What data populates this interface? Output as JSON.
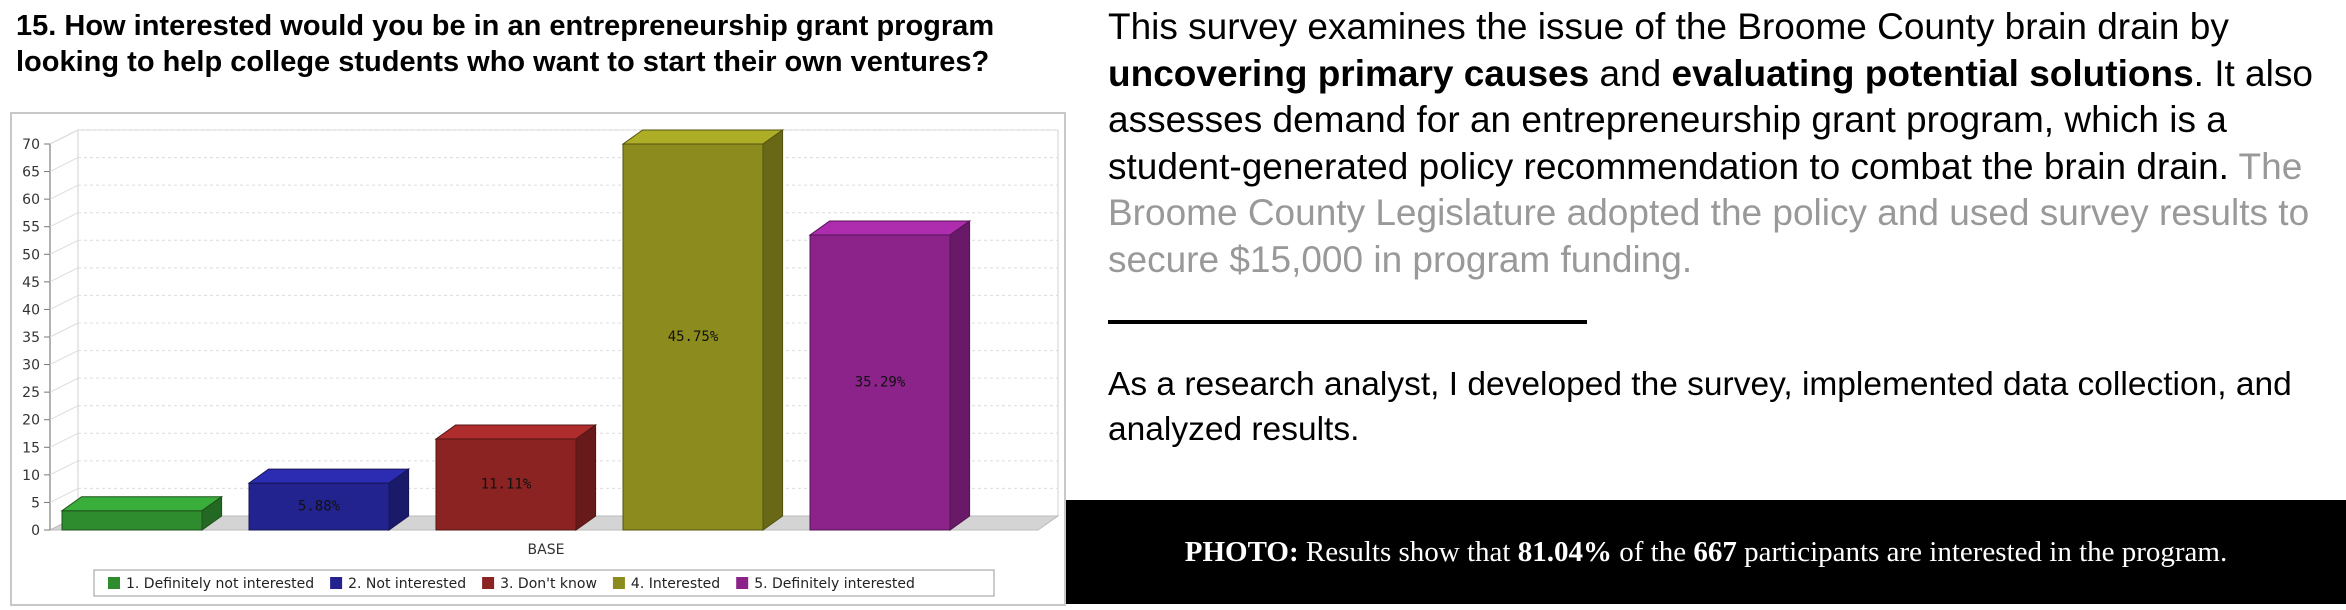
{
  "question": "15. How interested would you be in an entrepreneurship grant program looking to help college students who want to start their own ventures?",
  "chart_data": {
    "type": "bar",
    "xlabel": "BASE",
    "ylim": [
      0,
      70
    ],
    "yticks": [
      0,
      5,
      10,
      15,
      20,
      25,
      30,
      35,
      40,
      45,
      50,
      55,
      60,
      65,
      70
    ],
    "series": [
      {
        "name": "1. Definitely not interested",
        "value": 3.5,
        "label": "",
        "color": "#2e8b2e"
      },
      {
        "name": "2. Not interested",
        "value": 8.5,
        "label": "5.88%",
        "color": "#23238f"
      },
      {
        "name": "3. Don't know",
        "value": 16.5,
        "label": "11.11%",
        "color": "#8b2323"
      },
      {
        "name": "4. Interested",
        "value": 70,
        "label": "45.75%",
        "color": "#8b8b1e"
      },
      {
        "name": "5. Definitely interested",
        "value": 53.5,
        "label": "35.29%",
        "color": "#8b238b"
      }
    ],
    "grid": true,
    "legend_position": "bottom"
  },
  "description": {
    "part1": "This survey examines the issue of the Broome County brain drain by ",
    "bold1": "uncovering primary causes",
    "part2": " and ",
    "bold2": "evaluating potential solutions",
    "part3": ". It also assesses demand for an entrepreneurship grant program, which is a student-generated policy recommendation to combat the brain drain. ",
    "muted": "The Broome County Legislature adopted the policy and used survey results to secure $15,000 in program funding."
  },
  "role": "As a research analyst, I developed the survey, implemented data collection, and analyzed results.",
  "caption": {
    "label": "PHOTO:",
    "text1": " Results show that ",
    "pct": "81.04%",
    "text2": " of the ",
    "count": "667",
    "text3": " participants are interested in the program."
  }
}
